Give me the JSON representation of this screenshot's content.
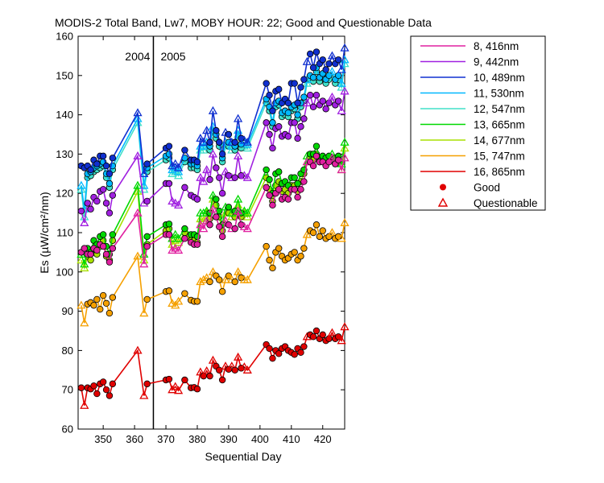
{
  "chart_data": {
    "type": "line",
    "title": "MODIS-2 Total Band,  Lw7, MOBY HOUR: 22;  Good and Questionable Data",
    "xlabel": "Sequential Day",
    "ylabel": "Es (µW/cm²/nm)",
    "xlim": [
      342,
      427
    ],
    "ylim": [
      60,
      160
    ],
    "xticks": [
      350,
      360,
      370,
      380,
      390,
      400,
      410,
      420
    ],
    "yticks": [
      60,
      70,
      80,
      90,
      100,
      110,
      120,
      130,
      140,
      150,
      160
    ],
    "grid": false,
    "legend_position": "right",
    "divider": {
      "x": 366,
      "label_left": "2004",
      "label_right": "2005"
    },
    "markers": {
      "good": "Good",
      "questionable": "Questionable"
    },
    "x": [
      343,
      344,
      345,
      346,
      347,
      348,
      349,
      350,
      351,
      352,
      353,
      361,
      363,
      364,
      370,
      371,
      372,
      373,
      374,
      376,
      378,
      379,
      380,
      381,
      382,
      383,
      384,
      385,
      386,
      387,
      388,
      389,
      390,
      391,
      392,
      393,
      394,
      395,
      396,
      402,
      403,
      404,
      405,
      406,
      407,
      408,
      409,
      410,
      411,
      412,
      413,
      414,
      415,
      416,
      417,
      418,
      419,
      420,
      421,
      422,
      423,
      424,
      425,
      426,
      427
    ],
    "series": [
      {
        "name": "16, 865nm",
        "color": "#e00000",
        "values": [
          70.5,
          66,
          70.5,
          70.2,
          71,
          69,
          71.5,
          72,
          70,
          68.5,
          71.5,
          80,
          68.5,
          71.5,
          72.5,
          72.7,
          70,
          70.8,
          69.8,
          72.5,
          70.5,
          70.6,
          70.2,
          74.5,
          73.5,
          74.8,
          73.5,
          77.5,
          76,
          75,
          72.5,
          76,
          75.2,
          76,
          75,
          78.3,
          75.5,
          75.8,
          75,
          81.5,
          80.5,
          78,
          80,
          79.2,
          80.5,
          81,
          80,
          79.5,
          79,
          80.5,
          79.5,
          81,
          83.5,
          84,
          83.5,
          85,
          83,
          84,
          82.5,
          83,
          84.5,
          83,
          83.5,
          82.5,
          86
        ],
        "flags": [
          1,
          0,
          1,
          1,
          1,
          1,
          1,
          1,
          1,
          1,
          1,
          0,
          0,
          1,
          1,
          1,
          0,
          0,
          0,
          1,
          1,
          1,
          1,
          0,
          1,
          0,
          1,
          0,
          1,
          1,
          1,
          0,
          1,
          0,
          1,
          0,
          1,
          0,
          0,
          1,
          1,
          1,
          1,
          1,
          1,
          1,
          1,
          1,
          1,
          1,
          1,
          1,
          0,
          1,
          1,
          1,
          1,
          1,
          1,
          1,
          0,
          1,
          1,
          0,
          0
        ]
      },
      {
        "name": "15, 747nm",
        "color": "#f5a000",
        "values": [
          91.5,
          87,
          91.8,
          92.2,
          91.5,
          93,
          90.5,
          94,
          92,
          89.5,
          93.5,
          104,
          89.5,
          93,
          95,
          95.2,
          92,
          91.5,
          92.5,
          94.5,
          92.8,
          92.5,
          92.5,
          97.5,
          98,
          98.5,
          97.5,
          100,
          99,
          98,
          95,
          98,
          99,
          98,
          97.5,
          100,
          98.5,
          98,
          98,
          106.5,
          103,
          101,
          105,
          106,
          104,
          103,
          103.5,
          104.5,
          105,
          103,
          104,
          106,
          109.5,
          110.5,
          110,
          112,
          109,
          110.5,
          108.5,
          109,
          110,
          108.5,
          109,
          108.5,
          112.5
        ],
        "flags": [
          0,
          0,
          1,
          1,
          1,
          1,
          1,
          1,
          1,
          1,
          1,
          0,
          0,
          1,
          1,
          1,
          0,
          0,
          0,
          1,
          1,
          1,
          1,
          0,
          0,
          0,
          1,
          0,
          1,
          1,
          1,
          0,
          1,
          0,
          1,
          0,
          1,
          0,
          0,
          1,
          1,
          1,
          1,
          1,
          1,
          1,
          1,
          1,
          1,
          1,
          1,
          1,
          0,
          1,
          1,
          1,
          1,
          1,
          1,
          1,
          0,
          1,
          1,
          0,
          0
        ]
      },
      {
        "name": "14, 677nm",
        "color": "#a8e000",
        "values": [
          103,
          101,
          104,
          103,
          105.5,
          104.5,
          106.5,
          108,
          104,
          103,
          108,
          120.5,
          103,
          107,
          110.5,
          111,
          107,
          108,
          107.5,
          110,
          108,
          108,
          107.5,
          113.5,
          113,
          115,
          113.5,
          118.5,
          117,
          114,
          110.5,
          115,
          115,
          114,
          114,
          117,
          114,
          115,
          114,
          124,
          121,
          118,
          122,
          123,
          120.5,
          121,
          120,
          122,
          122,
          120.5,
          123,
          125,
          128,
          129,
          128.5,
          130,
          128,
          128.5,
          127.5,
          128.5,
          129,
          127.5,
          128,
          126,
          131.5
        ],
        "flags": [
          0,
          0,
          1,
          1,
          1,
          1,
          1,
          1,
          1,
          1,
          1,
          0,
          0,
          1,
          1,
          1,
          0,
          0,
          0,
          1,
          1,
          1,
          1,
          0,
          0,
          0,
          1,
          0,
          1,
          1,
          1,
          0,
          1,
          0,
          1,
          0,
          1,
          0,
          0,
          1,
          1,
          1,
          1,
          1,
          1,
          1,
          1,
          1,
          1,
          1,
          1,
          1,
          0,
          1,
          1,
          1,
          1,
          1,
          1,
          1,
          0,
          1,
          1,
          0,
          0
        ]
      },
      {
        "name": "13, 665nm",
        "color": "#00d800",
        "values": [
          104.5,
          102,
          106,
          105,
          108,
          107,
          109,
          109.5,
          106.5,
          104.5,
          109.5,
          122,
          104.5,
          109,
          112,
          112.2,
          108.5,
          109.5,
          108.5,
          111,
          109.5,
          109.5,
          109,
          115,
          115,
          115.5,
          115,
          119.5,
          118.5,
          115.5,
          112,
          116.5,
          116.5,
          115,
          115.5,
          118.5,
          115,
          115.5,
          115,
          126,
          123.5,
          120,
          125,
          125.5,
          122.5,
          123,
          122,
          124,
          124,
          122.5,
          125,
          126,
          129.5,
          130,
          130,
          132,
          129,
          129.5,
          129,
          129.5,
          130,
          129,
          129.5,
          127.5,
          133
        ],
        "flags": [
          0,
          0,
          1,
          1,
          1,
          1,
          1,
          1,
          1,
          1,
          1,
          0,
          0,
          1,
          1,
          1,
          0,
          0,
          0,
          1,
          1,
          1,
          1,
          0,
          0,
          0,
          1,
          0,
          1,
          1,
          1,
          0,
          1,
          0,
          1,
          0,
          1,
          0,
          0,
          1,
          1,
          1,
          1,
          1,
          1,
          1,
          1,
          1,
          1,
          1,
          1,
          1,
          0,
          1,
          1,
          1,
          1,
          1,
          1,
          1,
          0,
          1,
          1,
          0,
          0
        ]
      },
      {
        "name": "12, 547nm",
        "color": "#40e0c8",
        "values": [
          121,
          114,
          124,
          124.5,
          125.5,
          126,
          126.5,
          127,
          124,
          121.5,
          126,
          138,
          121,
          125.5,
          128.5,
          129,
          125,
          125.5,
          124.5,
          128,
          126.5,
          126.5,
          126,
          131,
          131,
          132,
          131,
          136,
          134,
          132,
          128,
          132,
          132,
          131,
          131,
          135,
          131.5,
          132,
          131.5,
          143,
          141,
          137,
          142,
          142.5,
          139.5,
          140,
          139.5,
          141,
          141.5,
          139,
          142,
          143.5,
          148,
          149,
          148.5,
          151,
          148.5,
          149.5,
          148,
          149,
          150,
          148,
          149,
          147,
          153
        ],
        "flags": [
          0,
          0,
          1,
          1,
          1,
          1,
          1,
          1,
          1,
          1,
          1,
          0,
          0,
          1,
          1,
          1,
          0,
          0,
          0,
          1,
          1,
          1,
          1,
          0,
          0,
          0,
          1,
          0,
          1,
          1,
          1,
          0,
          1,
          0,
          1,
          0,
          1,
          0,
          0,
          1,
          1,
          1,
          1,
          1,
          1,
          1,
          1,
          1,
          1,
          1,
          1,
          1,
          0,
          1,
          1,
          1,
          1,
          1,
          1,
          1,
          0,
          1,
          1,
          0,
          0
        ]
      },
      {
        "name": "11, 530nm",
        "color": "#00b8ff",
        "values": [
          122,
          116,
          125,
          125.5,
          126.5,
          127,
          127.5,
          128,
          125,
          122.5,
          127,
          139,
          122,
          126.5,
          129.5,
          130,
          126,
          126.5,
          125.5,
          129,
          127.5,
          127.5,
          127,
          132,
          132,
          133,
          132,
          137,
          135,
          133,
          129,
          133,
          133,
          132,
          132,
          136,
          132.5,
          133,
          132.5,
          144,
          142,
          138,
          143,
          143.5,
          140.5,
          141,
          140.5,
          142,
          142.5,
          140,
          143,
          144.5,
          149,
          150,
          149.5,
          152,
          149.5,
          150.5,
          149,
          150,
          151,
          149,
          150,
          148,
          154
        ],
        "flags": [
          0,
          0,
          1,
          1,
          1,
          1,
          1,
          1,
          1,
          1,
          1,
          0,
          0,
          1,
          1,
          1,
          0,
          0,
          0,
          1,
          1,
          1,
          1,
          0,
          0,
          0,
          1,
          0,
          1,
          1,
          1,
          0,
          1,
          0,
          1,
          0,
          1,
          0,
          0,
          1,
          1,
          1,
          1,
          1,
          1,
          1,
          1,
          1,
          1,
          1,
          1,
          1,
          0,
          1,
          1,
          1,
          1,
          1,
          1,
          1,
          0,
          1,
          1,
          0,
          0
        ]
      },
      {
        "name": "10, 489nm",
        "color": "#1030d0",
        "values": [
          127,
          126.5,
          127,
          126,
          128.5,
          127.5,
          129.5,
          129.5,
          127,
          125,
          129,
          140.5,
          125,
          127.5,
          131.5,
          132,
          127,
          127.5,
          126.5,
          131,
          128.5,
          128.5,
          128,
          134,
          133,
          136,
          133,
          141,
          136,
          133,
          130,
          135.5,
          135,
          133,
          133,
          139,
          134,
          133.5,
          133,
          148,
          145,
          141,
          146,
          146.5,
          143,
          144,
          143,
          148,
          148,
          143,
          147,
          149,
          153.5,
          155.5,
          152,
          156,
          153,
          154,
          151.5,
          153,
          155,
          153,
          154,
          151.5,
          157
        ],
        "flags": [
          1,
          1,
          1,
          1,
          1,
          1,
          1,
          1,
          1,
          1,
          1,
          0,
          0,
          1,
          1,
          1,
          0,
          0,
          0,
          1,
          1,
          1,
          1,
          0,
          0,
          0,
          1,
          0,
          1,
          1,
          1,
          0,
          1,
          0,
          1,
          0,
          1,
          0,
          0,
          1,
          1,
          1,
          1,
          1,
          1,
          1,
          1,
          1,
          1,
          1,
          1,
          1,
          0,
          1,
          1,
          1,
          1,
          1,
          1,
          1,
          0,
          1,
          1,
          0,
          0
        ]
      },
      {
        "name": "9, 442nm",
        "color": "#a020e0",
        "values": [
          115.5,
          112.5,
          117.5,
          116,
          119,
          118,
          120.5,
          121,
          117.5,
          115,
          119.5,
          129.5,
          117.5,
          118,
          122.5,
          122.5,
          118,
          117.5,
          117,
          121.5,
          119.5,
          119,
          118.5,
          124,
          123,
          126,
          123.5,
          130,
          126.5,
          124,
          120,
          125.5,
          124.5,
          124,
          124,
          129.5,
          124.5,
          124.5,
          124,
          138,
          135,
          131.5,
          136.5,
          137,
          134.5,
          135,
          134.5,
          138,
          138,
          134,
          137,
          139,
          143,
          145,
          142,
          145,
          142.5,
          143.5,
          141.5,
          143,
          144.5,
          142.5,
          143.5,
          141,
          146
        ],
        "flags": [
          1,
          0,
          1,
          1,
          1,
          1,
          1,
          1,
          1,
          1,
          1,
          0,
          0,
          1,
          1,
          1,
          0,
          0,
          0,
          1,
          1,
          1,
          1,
          0,
          0,
          0,
          1,
          0,
          1,
          1,
          1,
          0,
          1,
          0,
          1,
          0,
          1,
          0,
          0,
          1,
          1,
          1,
          1,
          1,
          1,
          1,
          1,
          1,
          1,
          1,
          1,
          1,
          0,
          1,
          1,
          1,
          1,
          1,
          1,
          1,
          0,
          1,
          1,
          0,
          0
        ]
      },
      {
        "name": "8, 416nm",
        "color": "#e020a0",
        "values": [
          105,
          106,
          104.5,
          104.5,
          106,
          105.5,
          107,
          106.5,
          104.5,
          102.5,
          106,
          115,
          102,
          106.5,
          109.5,
          109.5,
          105.5,
          106,
          105.5,
          108.5,
          107.5,
          107,
          107,
          112,
          111,
          113,
          112,
          116,
          114,
          111.5,
          109,
          113,
          112,
          111,
          111,
          115.5,
          112,
          111.5,
          111,
          121.5,
          119.5,
          117,
          120,
          121,
          118.5,
          119,
          118.5,
          121,
          121,
          119,
          121,
          123,
          128,
          128,
          127,
          129.5,
          128,
          128,
          127,
          128,
          129,
          127.5,
          128.5,
          126,
          129
        ],
        "flags": [
          1,
          1,
          1,
          1,
          1,
          1,
          1,
          1,
          1,
          1,
          1,
          0,
          0,
          1,
          1,
          1,
          0,
          0,
          0,
          1,
          1,
          1,
          1,
          0,
          0,
          0,
          1,
          0,
          1,
          1,
          1,
          0,
          1,
          0,
          1,
          0,
          1,
          0,
          0,
          1,
          1,
          1,
          1,
          1,
          1,
          1,
          1,
          1,
          1,
          1,
          1,
          1,
          0,
          1,
          1,
          1,
          1,
          1,
          1,
          1,
          0,
          1,
          1,
          0,
          0
        ]
      }
    ]
  }
}
